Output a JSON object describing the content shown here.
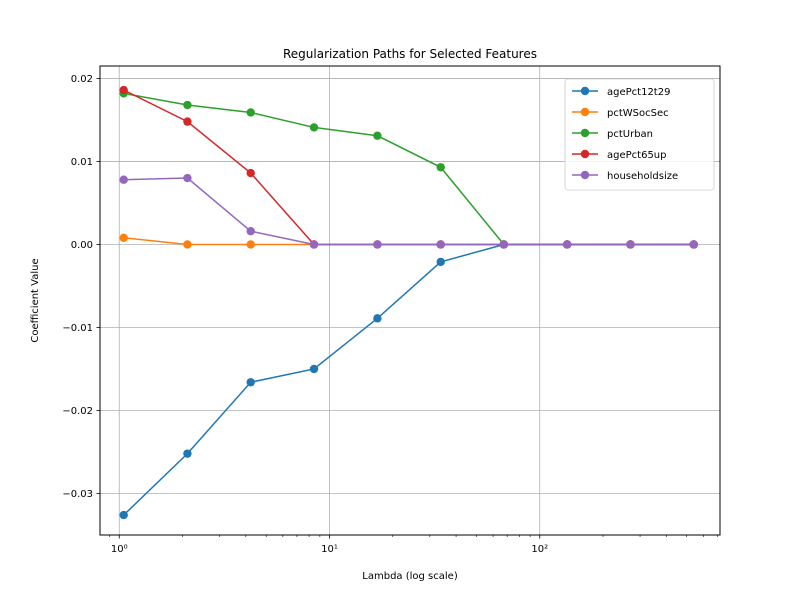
{
  "chart_data": {
    "type": "line",
    "title": "Regularization Paths for Selected Features",
    "xlabel": "Lambda (log scale)",
    "ylabel": "Coefficient Value",
    "xscale": "log",
    "xlim": [
      0.81,
      720
    ],
    "ylim": [
      -0.035,
      0.0215
    ],
    "grid": true,
    "legend_position": "top-right",
    "x": [
      1.05,
      2.11,
      4.22,
      8.44,
      16.9,
      33.8,
      67.5,
      135,
      270,
      540
    ],
    "x_ticks": [
      {
        "value": 1,
        "label": "10⁰"
      },
      {
        "value": 10,
        "label": "10¹"
      },
      {
        "value": 100,
        "label": "10²"
      }
    ],
    "y_ticks": [
      {
        "value": 0.02,
        "label": "0.02"
      },
      {
        "value": 0.01,
        "label": "0.01"
      },
      {
        "value": 0.0,
        "label": "0.00"
      },
      {
        "value": -0.01,
        "label": "−0.01"
      },
      {
        "value": -0.02,
        "label": "−0.02"
      },
      {
        "value": -0.03,
        "label": "−0.03"
      }
    ],
    "series": [
      {
        "name": "agePct12t29",
        "color": "#1f77b4",
        "values": [
          -0.0326,
          -0.0252,
          -0.0166,
          -0.015,
          -0.0089,
          -0.0021,
          0.0,
          0.0,
          0.0,
          0.0
        ]
      },
      {
        "name": "pctWSocSec",
        "color": "#ff7f0e",
        "values": [
          0.0008,
          0.0,
          0.0,
          0.0,
          0.0,
          0.0,
          0.0,
          0.0,
          0.0,
          0.0
        ]
      },
      {
        "name": "pctUrban",
        "color": "#2ca02c",
        "values": [
          0.0182,
          0.0168,
          0.0159,
          0.0141,
          0.0131,
          0.0093,
          0.0,
          0.0,
          0.0,
          0.0
        ]
      },
      {
        "name": "agePct65up",
        "color": "#d62728",
        "values": [
          0.0186,
          0.0148,
          0.0086,
          0.0,
          0.0,
          0.0,
          0.0,
          0.0,
          0.0,
          0.0
        ]
      },
      {
        "name": "householdsize",
        "color": "#9467bd",
        "values": [
          0.0078,
          0.008,
          0.0016,
          0.0,
          0.0,
          0.0,
          0.0,
          0.0,
          0.0,
          0.0
        ]
      }
    ]
  }
}
